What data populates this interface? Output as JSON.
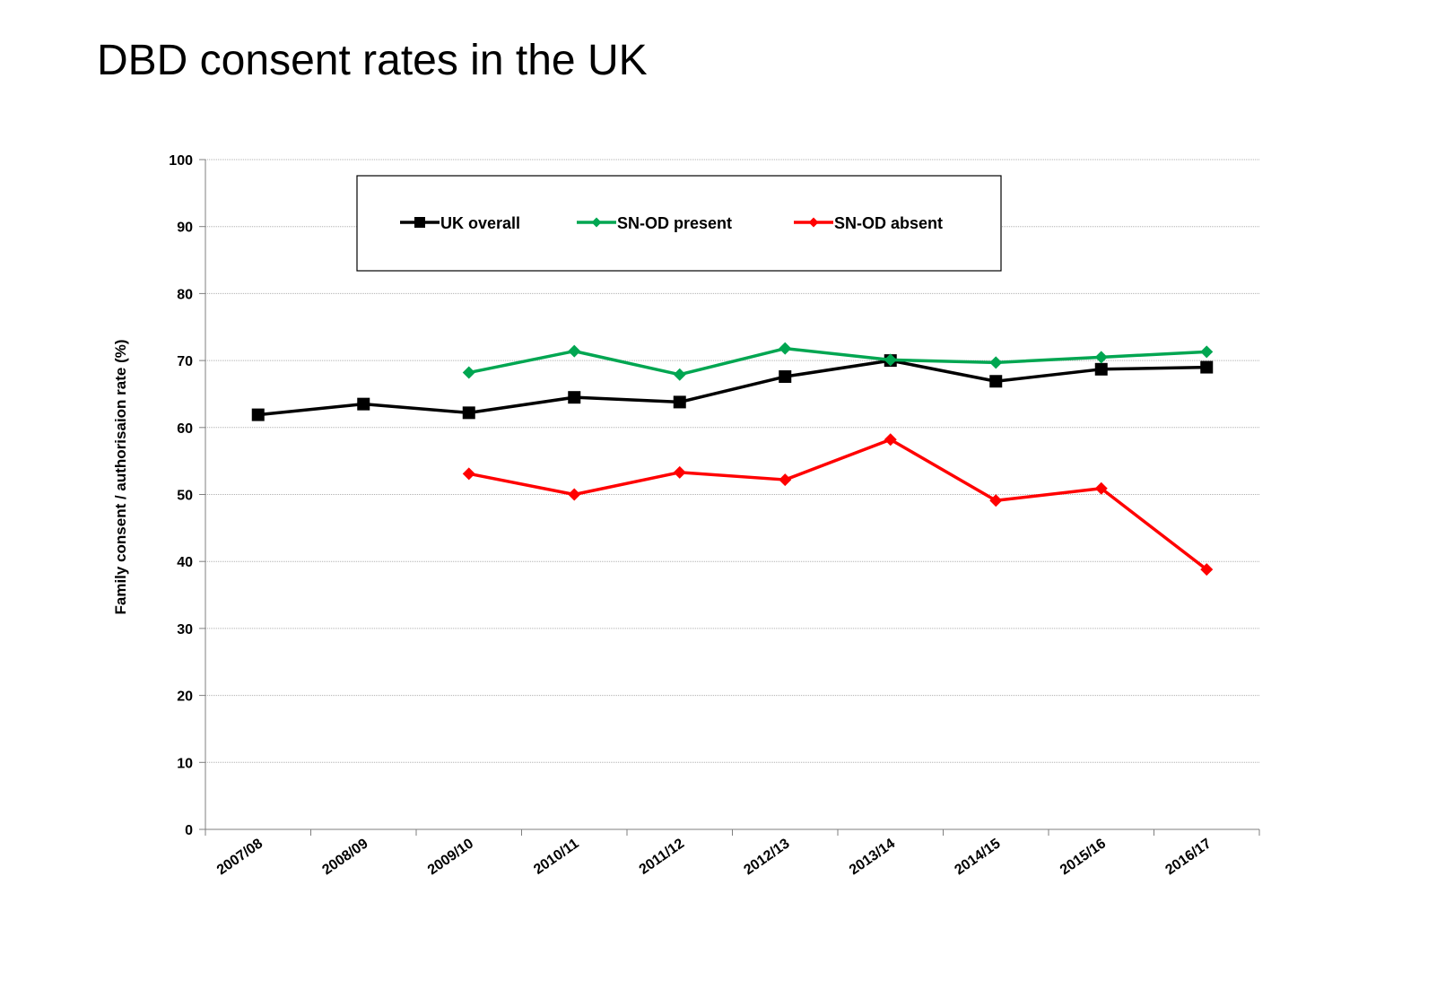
{
  "chart_data": {
    "type": "line",
    "title": "DBD consent rates in the UK",
    "xlabel": "",
    "ylabel": "Family consent / authorisaion rate (%)",
    "ylim": [
      0,
      100
    ],
    "yticks": [
      0,
      10,
      20,
      30,
      40,
      50,
      60,
      70,
      80,
      90,
      100
    ],
    "grid": true,
    "legend_position": "top",
    "categories": [
      "2007/08",
      "2008/09",
      "2009/10",
      "2010/11",
      "2011/12",
      "2012/13",
      "2013/14",
      "2014/15",
      "2015/16",
      "2016/17"
    ],
    "series": [
      {
        "name": "UK overall",
        "color": "#000000",
        "marker": "square",
        "values": [
          61.9,
          63.5,
          62.2,
          64.5,
          63.8,
          67.6,
          70.0,
          66.9,
          68.7,
          69.0
        ]
      },
      {
        "name": "SN-OD present",
        "color": "#00A651",
        "marker": "diamond",
        "values": [
          null,
          null,
          68.2,
          71.4,
          67.9,
          71.8,
          70.1,
          69.7,
          70.5,
          71.3
        ]
      },
      {
        "name": "SN-OD absent",
        "color": "#FF0000",
        "marker": "diamond",
        "values": [
          null,
          null,
          53.1,
          50.0,
          53.3,
          52.2,
          58.2,
          49.1,
          50.9,
          38.8
        ]
      }
    ]
  }
}
